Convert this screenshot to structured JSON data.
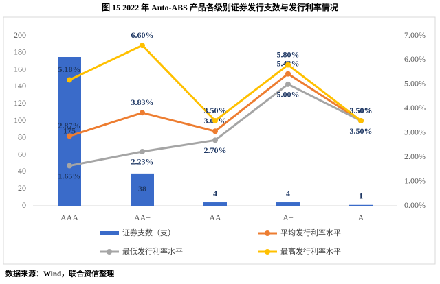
{
  "chart_data": {
    "type": "bar",
    "title": "图 15   2022 年 Auto-ABS 产品各级别证券发行支数与发行利率情况",
    "source": "数据来源：Wind，联合资信整理",
    "categories": [
      "AAA",
      "AA+",
      "AA",
      "A+",
      "A"
    ],
    "ylim": [
      0,
      200
    ],
    "yticks": [
      0,
      20,
      40,
      60,
      80,
      100,
      120,
      140,
      160,
      180,
      200
    ],
    "y2lim": [
      0,
      7
    ],
    "y2ticks": [
      {
        "value": 0,
        "label": "0.00%"
      },
      {
        "value": 1,
        "label": "1.00%"
      },
      {
        "value": 2,
        "label": "2.00%"
      },
      {
        "value": 3,
        "label": "3.00%"
      },
      {
        "value": 4,
        "label": "4.00%"
      },
      {
        "value": 5,
        "label": "5.00%"
      },
      {
        "value": 6,
        "label": "6.00%"
      },
      {
        "value": 7,
        "label": "7.00%"
      }
    ],
    "grid": false,
    "series": [
      {
        "name": "证券支数（支）",
        "type": "bar",
        "color": "#3a6bc9",
        "values": [
          175,
          38,
          4,
          4,
          1
        ]
      },
      {
        "name": "平均发行利率水平",
        "type": "line",
        "axis": "y2",
        "color": "#ed7d31",
        "values": [
          2.87,
          3.83,
          3.07,
          5.43,
          3.5
        ],
        "value_labels": [
          "2.87%",
          "3.83%",
          "3.07%",
          "5.43%",
          "3.50%"
        ]
      },
      {
        "name": "最低发行利率水平",
        "type": "line",
        "axis": "y2",
        "color": "#a5a5a5",
        "values": [
          1.65,
          2.23,
          2.7,
          5.0,
          3.5
        ],
        "value_labels": [
          "1.65%",
          "2.23%",
          "2.70%",
          "5.00%",
          "3.50%"
        ]
      },
      {
        "name": "最高发行利率水平",
        "type": "line",
        "axis": "y2",
        "color": "#ffc000",
        "values": [
          5.18,
          6.6,
          3.5,
          5.8,
          3.5
        ],
        "value_labels": [
          "5.18%",
          "6.60%",
          "3.50%",
          "5.80%",
          "3.50%"
        ]
      }
    ]
  }
}
